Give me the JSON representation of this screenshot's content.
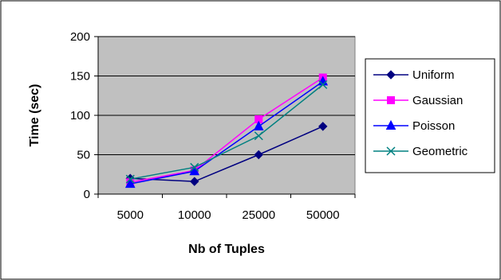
{
  "chart_data": {
    "type": "line",
    "title": "",
    "xlabel": "Nb of Tuples",
    "ylabel": "Time (sec)",
    "categories": [
      "5000",
      "10000",
      "25000",
      "50000"
    ],
    "ylim": [
      0,
      200
    ],
    "yticks": [
      "0",
      "50",
      "100",
      "150",
      "200"
    ],
    "grid": true,
    "legend_position": "right",
    "plot_background": "#c0c0c0",
    "series": [
      {
        "name": "Uniform",
        "values": [
          20,
          16,
          50,
          86
        ],
        "color": "#000080",
        "marker": "diamond"
      },
      {
        "name": "Gaussian",
        "values": [
          15,
          30,
          95,
          148
        ],
        "color": "#ff00ff",
        "marker": "square"
      },
      {
        "name": "Poisson",
        "values": [
          13,
          29,
          86,
          143
        ],
        "color": "#0000ff",
        "marker": "triangle"
      },
      {
        "name": "Geometric",
        "values": [
          19,
          34,
          74,
          139
        ],
        "color": "#008080",
        "marker": "x"
      }
    ]
  }
}
